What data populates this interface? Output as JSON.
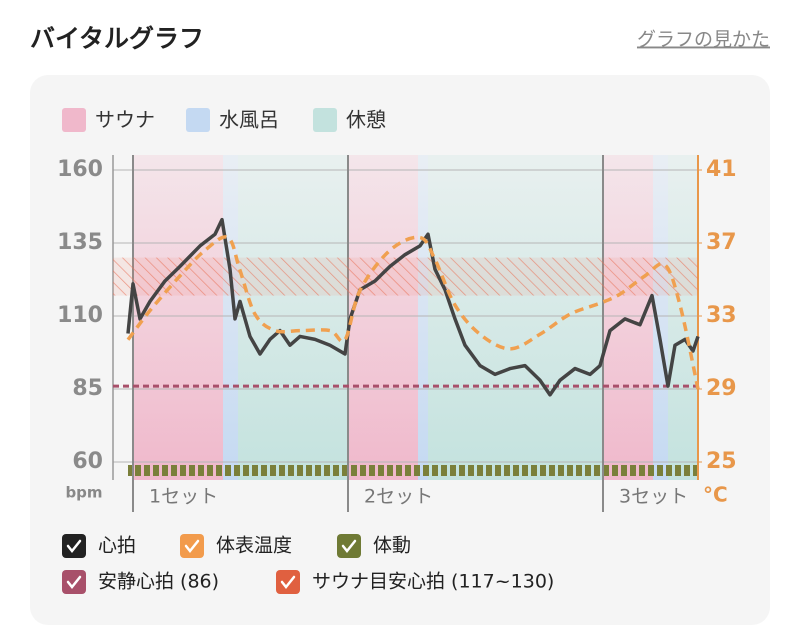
{
  "header": {
    "title": "バイタルグラフ",
    "help_link": "グラフの見かた"
  },
  "chart_data": {
    "type": "line",
    "phase_legend": [
      {
        "name": "サウナ",
        "color": "#f0b8cb"
      },
      {
        "name": "水風呂",
        "color": "#c4d9f2"
      },
      {
        "name": "休憩",
        "color": "#c3e2de"
      }
    ],
    "phases": [
      {
        "legend_index": 0,
        "start": 4,
        "end": 22
      },
      {
        "legend_index": 1,
        "start": 22,
        "end": 25
      },
      {
        "legend_index": 2,
        "start": 25,
        "end": 47
      },
      {
        "legend_index": 0,
        "start": 47,
        "end": 61
      },
      {
        "legend_index": 1,
        "start": 61,
        "end": 63
      },
      {
        "legend_index": 2,
        "start": 63,
        "end": 98
      },
      {
        "legend_index": 0,
        "start": 98,
        "end": 108
      },
      {
        "legend_index": 1,
        "start": 108,
        "end": 111
      },
      {
        "legend_index": 2,
        "start": 111,
        "end": 117
      }
    ],
    "sets": [
      {
        "label": "1セット",
        "x": 4
      },
      {
        "label": "2セット",
        "x": 47
      },
      {
        "label": "3セット",
        "x": 98
      }
    ],
    "xlim": [
      0,
      117
    ],
    "ylim": [
      60,
      160
    ],
    "yticks": [
      60,
      85,
      110,
      135,
      160
    ],
    "y_unit": "bpm",
    "y2lim": [
      25,
      41
    ],
    "y2ticks": [
      25,
      29,
      33,
      37,
      41
    ],
    "y2_unit": "°C",
    "series": [
      {
        "name": "心拍",
        "color": "#444444",
        "check_color": "#222222",
        "x": [
          3,
          4,
          5.4,
          7.4,
          10.4,
          13.4,
          17.4,
          20.4,
          21.8,
          23.4,
          24.4,
          25.4,
          27.4,
          29.4,
          31.4,
          33.4,
          35.4,
          37.4,
          40.4,
          43.4,
          46.4,
          47.4,
          49.4,
          52.4,
          55.4,
          58.4,
          61.4,
          63,
          64.4,
          66.4,
          68.4,
          70.4,
          73.4,
          76.4,
          79.4,
          82.4,
          85.4,
          87.4,
          89.4,
          92.4,
          95.4,
          97.4,
          99.4,
          102.4,
          105.4,
          107.8,
          109.4,
          111,
          112.4,
          114.4,
          116,
          117
        ],
        "values": [
          104,
          121,
          109,
          115,
          122,
          127,
          134,
          138,
          143,
          126,
          109,
          115,
          103,
          97,
          102,
          105,
          100,
          103,
          102,
          100,
          97,
          109,
          119,
          122,
          127,
          131,
          134,
          138,
          126,
          119,
          109,
          100,
          93,
          90,
          92,
          93,
          88,
          83,
          88,
          92,
          90,
          93,
          105,
          109,
          107,
          117,
          102,
          86,
          100,
          102,
          98,
          103
        ]
      },
      {
        "name": "体表温度",
        "color": "#f0a050",
        "check_color": "#f29b4c",
        "axis": "y2",
        "x": [
          3,
          7.4,
          13.4,
          18.4,
          23,
          25.4,
          28.4,
          32.4,
          37.4,
          43.4,
          46.4,
          49.4,
          55.4,
          61.4,
          64.4,
          68.4,
          73.4,
          79.4,
          85.4,
          91.4,
          97.4,
          101.4,
          106.4,
          110.4,
          113.4,
          117
        ],
        "values": [
          31.7,
          33.3,
          35.2,
          36.6,
          37.3,
          35.5,
          33.1,
          32.2,
          32.2,
          32.2,
          31.7,
          34.4,
          36.6,
          37.3,
          36.1,
          33.6,
          32.0,
          31.2,
          32.0,
          33.1,
          33.7,
          34.2,
          35.2,
          35.8,
          33.6,
          29.0
        ]
      },
      {
        "name": "体動",
        "color": "#7a7f3a",
        "check_color": "#6f7a35"
      }
    ],
    "reference_line": {
      "name": "安静心拍 (86)",
      "value": 86,
      "color": "#a8506a"
    },
    "target_zone": {
      "name": "サウナ目安心拍 (117~130)",
      "range": [
        117,
        130
      ],
      "color": "#e06040"
    }
  }
}
